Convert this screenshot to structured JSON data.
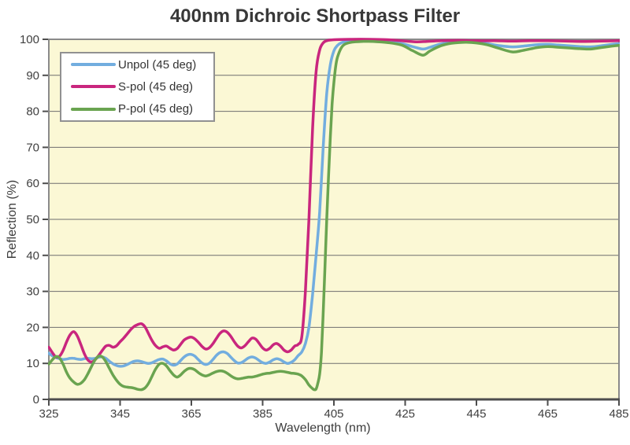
{
  "chart_data": {
    "type": "line",
    "title": "400nm Dichroic Shortpass Filter",
    "xlabel": "Wavelength (nm)",
    "ylabel": "Reflection (%)",
    "xlim": [
      325,
      485
    ],
    "ylim": [
      0,
      100
    ],
    "x_ticks": [
      325,
      345,
      365,
      385,
      405,
      425,
      445,
      465,
      485
    ],
    "y_ticks": [
      0,
      10,
      20,
      30,
      40,
      50,
      60,
      70,
      80,
      90,
      100
    ],
    "grid": "horizontal-only",
    "legend_position": "top-left",
    "plot_bg": "#FBF8D5",
    "grid_color": "#6E6E6E",
    "border_color": "#8A8A8A",
    "axis_color": "#4D4D4D",
    "text_color": "#3F3F3F",
    "series": [
      {
        "name": "Unpol (45 deg)",
        "color": "#72ADDF",
        "points": [
          [
            325,
            12.8
          ],
          [
            326,
            12.1
          ],
          [
            327,
            11.6
          ],
          [
            328,
            11.3
          ],
          [
            329,
            11.1
          ],
          [
            330,
            11.2
          ],
          [
            331,
            11.4
          ],
          [
            332,
            11.4
          ],
          [
            333,
            11.2
          ],
          [
            334,
            11.1
          ],
          [
            335,
            11.3
          ],
          [
            336,
            11.4
          ],
          [
            337,
            11.3
          ],
          [
            338,
            11.4
          ],
          [
            339,
            11.7
          ],
          [
            340,
            11.8
          ],
          [
            341,
            11.4
          ],
          [
            342,
            10.6
          ],
          [
            343,
            9.9
          ],
          [
            344,
            9.4
          ],
          [
            345,
            9.2
          ],
          [
            346,
            9.3
          ],
          [
            347,
            9.7
          ],
          [
            348,
            10.2
          ],
          [
            349,
            10.6
          ],
          [
            350,
            10.7
          ],
          [
            351,
            10.5
          ],
          [
            352,
            10.2
          ],
          [
            353,
            10.0
          ],
          [
            354,
            10.2
          ],
          [
            355,
            10.7
          ],
          [
            356,
            11.1
          ],
          [
            357,
            11.2
          ],
          [
            358,
            10.7
          ],
          [
            359,
            9.9
          ],
          [
            360,
            9.5
          ],
          [
            361,
            9.8
          ],
          [
            362,
            10.8
          ],
          [
            363,
            11.8
          ],
          [
            364,
            12.4
          ],
          [
            365,
            12.5
          ],
          [
            366,
            12.0
          ],
          [
            367,
            11.0
          ],
          [
            368,
            10.1
          ],
          [
            369,
            9.7
          ],
          [
            370,
            10.0
          ],
          [
            371,
            11.0
          ],
          [
            372,
            12.2
          ],
          [
            373,
            13.0
          ],
          [
            374,
            13.2
          ],
          [
            375,
            12.8
          ],
          [
            376,
            11.8
          ],
          [
            377,
            10.8
          ],
          [
            378,
            10.1
          ],
          [
            379,
            10.2
          ],
          [
            380,
            10.8
          ],
          [
            381,
            11.5
          ],
          [
            382,
            11.8
          ],
          [
            383,
            11.5
          ],
          [
            384,
            10.8
          ],
          [
            385,
            10.2
          ],
          [
            386,
            10.0
          ],
          [
            387,
            10.4
          ],
          [
            388,
            11.0
          ],
          [
            389,
            11.3
          ],
          [
            390,
            11.0
          ],
          [
            391,
            10.4
          ],
          [
            392,
            10.0
          ],
          [
            393,
            10.3
          ],
          [
            394,
            11.0
          ],
          [
            395,
            12.2
          ],
          [
            396,
            13.2
          ],
          [
            397,
            15.5
          ],
          [
            398,
            20.0
          ],
          [
            399,
            29.0
          ],
          [
            400,
            40.0
          ],
          [
            401,
            52.0
          ],
          [
            402,
            70.0
          ],
          [
            403,
            85.0
          ],
          [
            404,
            93.0
          ],
          [
            405,
            96.8
          ],
          [
            406,
            98.3
          ],
          [
            407,
            99.0
          ],
          [
            408,
            99.3
          ],
          [
            410,
            99.5
          ],
          [
            415,
            99.5
          ],
          [
            420,
            99.3
          ],
          [
            424,
            98.8
          ],
          [
            427,
            98.0
          ],
          [
            430,
            97.3
          ],
          [
            432,
            97.8
          ],
          [
            435,
            98.7
          ],
          [
            438,
            99.1
          ],
          [
            442,
            99.2
          ],
          [
            445,
            99.1
          ],
          [
            448,
            98.8
          ],
          [
            451,
            98.3
          ],
          [
            455,
            97.9
          ],
          [
            458,
            98.1
          ],
          [
            462,
            98.5
          ],
          [
            465,
            98.6
          ],
          [
            468,
            98.4
          ],
          [
            471,
            98.2
          ],
          [
            474,
            98.0
          ],
          [
            477,
            97.9
          ],
          [
            480,
            98.2
          ],
          [
            483,
            98.6
          ],
          [
            485,
            98.8
          ]
        ]
      },
      {
        "name": "S-pol (45 deg)",
        "color": "#C9267E",
        "points": [
          [
            325,
            14.5
          ],
          [
            326,
            13.0
          ],
          [
            327,
            11.8
          ],
          [
            328,
            12.0
          ],
          [
            329,
            13.6
          ],
          [
            330,
            16.0
          ],
          [
            331,
            18.0
          ],
          [
            332,
            18.8
          ],
          [
            333,
            17.6
          ],
          [
            334,
            15.2
          ],
          [
            335,
            12.6
          ],
          [
            336,
            10.9
          ],
          [
            337,
            10.4
          ],
          [
            338,
            11.0
          ],
          [
            339,
            12.2
          ],
          [
            340,
            13.6
          ],
          [
            341,
            14.8
          ],
          [
            342,
            15.0
          ],
          [
            343,
            14.5
          ],
          [
            344,
            14.9
          ],
          [
            345,
            16.0
          ],
          [
            346,
            17.0
          ],
          [
            347,
            18.2
          ],
          [
            348,
            19.4
          ],
          [
            349,
            20.3
          ],
          [
            350,
            20.8
          ],
          [
            351,
            21.0
          ],
          [
            352,
            20.1
          ],
          [
            353,
            18.2
          ],
          [
            354,
            16.3
          ],
          [
            355,
            14.9
          ],
          [
            356,
            14.2
          ],
          [
            357,
            14.6
          ],
          [
            358,
            14.8
          ],
          [
            359,
            14.2
          ],
          [
            360,
            13.7
          ],
          [
            361,
            14.1
          ],
          [
            362,
            15.3
          ],
          [
            363,
            16.5
          ],
          [
            364,
            17.1
          ],
          [
            365,
            17.3
          ],
          [
            366,
            16.8
          ],
          [
            367,
            15.8
          ],
          [
            368,
            14.7
          ],
          [
            369,
            14.0
          ],
          [
            370,
            14.3
          ],
          [
            371,
            15.4
          ],
          [
            372,
            16.9
          ],
          [
            373,
            18.3
          ],
          [
            374,
            19.0
          ],
          [
            375,
            18.7
          ],
          [
            376,
            17.6
          ],
          [
            377,
            16.1
          ],
          [
            378,
            14.8
          ],
          [
            379,
            14.3
          ],
          [
            380,
            14.9
          ],
          [
            381,
            16.0
          ],
          [
            382,
            17.0
          ],
          [
            383,
            16.8
          ],
          [
            384,
            15.6
          ],
          [
            385,
            14.3
          ],
          [
            386,
            13.7
          ],
          [
            387,
            14.2
          ],
          [
            388,
            15.2
          ],
          [
            389,
            15.5
          ],
          [
            390,
            14.8
          ],
          [
            391,
            13.7
          ],
          [
            392,
            13.2
          ],
          [
            393,
            13.7
          ],
          [
            394,
            14.8
          ],
          [
            395,
            15.3
          ],
          [
            396,
            17.5
          ],
          [
            397,
            30.0
          ],
          [
            398,
            50.0
          ],
          [
            399,
            75.0
          ],
          [
            400,
            91.0
          ],
          [
            401,
            97.0
          ],
          [
            402,
            99.0
          ],
          [
            403,
            99.6
          ],
          [
            405,
            99.9
          ],
          [
            410,
            100.0
          ],
          [
            415,
            100.0
          ],
          [
            420,
            99.9
          ],
          [
            424,
            99.6
          ],
          [
            428,
            99.3
          ],
          [
            431,
            99.4
          ],
          [
            435,
            99.6
          ],
          [
            440,
            99.7
          ],
          [
            445,
            99.6
          ],
          [
            450,
            99.6
          ],
          [
            455,
            99.5
          ],
          [
            460,
            99.6
          ],
          [
            465,
            99.6
          ],
          [
            470,
            99.5
          ],
          [
            475,
            99.4
          ],
          [
            480,
            99.5
          ],
          [
            485,
            99.6
          ]
        ]
      },
      {
        "name": "P-pol (45 deg)",
        "color": "#6AA450",
        "points": [
          [
            325,
            9.8
          ],
          [
            326,
            11.0
          ],
          [
            327,
            11.9
          ],
          [
            328,
            11.5
          ],
          [
            329,
            9.8
          ],
          [
            330,
            7.5
          ],
          [
            331,
            5.8
          ],
          [
            332,
            4.8
          ],
          [
            333,
            4.2
          ],
          [
            334,
            4.5
          ],
          [
            335,
            5.5
          ],
          [
            336,
            7.2
          ],
          [
            337,
            9.2
          ],
          [
            338,
            11.0
          ],
          [
            339,
            12.0
          ],
          [
            340,
            11.8
          ],
          [
            341,
            10.5
          ],
          [
            342,
            8.6
          ],
          [
            343,
            6.8
          ],
          [
            344,
            5.3
          ],
          [
            345,
            4.2
          ],
          [
            346,
            3.6
          ],
          [
            347,
            3.4
          ],
          [
            348,
            3.3
          ],
          [
            349,
            3.1
          ],
          [
            350,
            2.8
          ],
          [
            351,
            2.7
          ],
          [
            352,
            3.2
          ],
          [
            353,
            4.5
          ],
          [
            354,
            6.5
          ],
          [
            355,
            8.5
          ],
          [
            356,
            9.8
          ],
          [
            357,
            10.0
          ],
          [
            358,
            9.3
          ],
          [
            359,
            8.0
          ],
          [
            360,
            6.8
          ],
          [
            361,
            6.2
          ],
          [
            362,
            6.8
          ],
          [
            363,
            7.8
          ],
          [
            364,
            8.5
          ],
          [
            365,
            8.6
          ],
          [
            366,
            8.2
          ],
          [
            367,
            7.4
          ],
          [
            368,
            6.8
          ],
          [
            369,
            6.5
          ],
          [
            370,
            6.8
          ],
          [
            371,
            7.3
          ],
          [
            372,
            7.7
          ],
          [
            373,
            7.9
          ],
          [
            374,
            7.8
          ],
          [
            375,
            7.3
          ],
          [
            376,
            6.6
          ],
          [
            377,
            6.0
          ],
          [
            378,
            5.7
          ],
          [
            379,
            5.8
          ],
          [
            380,
            6.0
          ],
          [
            381,
            6.2
          ],
          [
            382,
            6.2
          ],
          [
            383,
            6.4
          ],
          [
            384,
            6.7
          ],
          [
            385,
            7.0
          ],
          [
            386,
            7.2
          ],
          [
            387,
            7.3
          ],
          [
            388,
            7.5
          ],
          [
            389,
            7.7
          ],
          [
            390,
            7.8
          ],
          [
            391,
            7.7
          ],
          [
            392,
            7.5
          ],
          [
            393,
            7.3
          ],
          [
            394,
            7.2
          ],
          [
            395,
            7.0
          ],
          [
            396,
            6.5
          ],
          [
            397,
            5.5
          ],
          [
            398,
            4.0
          ],
          [
            399,
            3.0
          ],
          [
            399.5,
            2.7
          ],
          [
            400,
            2.9
          ],
          [
            400.5,
            4.5
          ],
          [
            401,
            7.0
          ],
          [
            401.5,
            13.0
          ],
          [
            402,
            24.0
          ],
          [
            402.5,
            37.0
          ],
          [
            403,
            50.0
          ],
          [
            403.5,
            62.0
          ],
          [
            404,
            73.0
          ],
          [
            404.5,
            82.0
          ],
          [
            405,
            88.0
          ],
          [
            405.5,
            92.5
          ],
          [
            406,
            95.0
          ],
          [
            407,
            97.5
          ],
          [
            408,
            98.6
          ],
          [
            410,
            99.2
          ],
          [
            413,
            99.4
          ],
          [
            416,
            99.4
          ],
          [
            420,
            99.1
          ],
          [
            424,
            98.4
          ],
          [
            427,
            96.9
          ],
          [
            430,
            95.6
          ],
          [
            432,
            96.8
          ],
          [
            435,
            98.2
          ],
          [
            438,
            98.9
          ],
          [
            442,
            99.2
          ],
          [
            445,
            99.0
          ],
          [
            448,
            98.5
          ],
          [
            451,
            97.6
          ],
          [
            455,
            96.5
          ],
          [
            458,
            96.9
          ],
          [
            462,
            97.7
          ],
          [
            465,
            98.0
          ],
          [
            468,
            97.8
          ],
          [
            471,
            97.6
          ],
          [
            474,
            97.4
          ],
          [
            477,
            97.3
          ],
          [
            480,
            97.7
          ],
          [
            483,
            98.1
          ],
          [
            485,
            98.3
          ]
        ]
      }
    ]
  }
}
